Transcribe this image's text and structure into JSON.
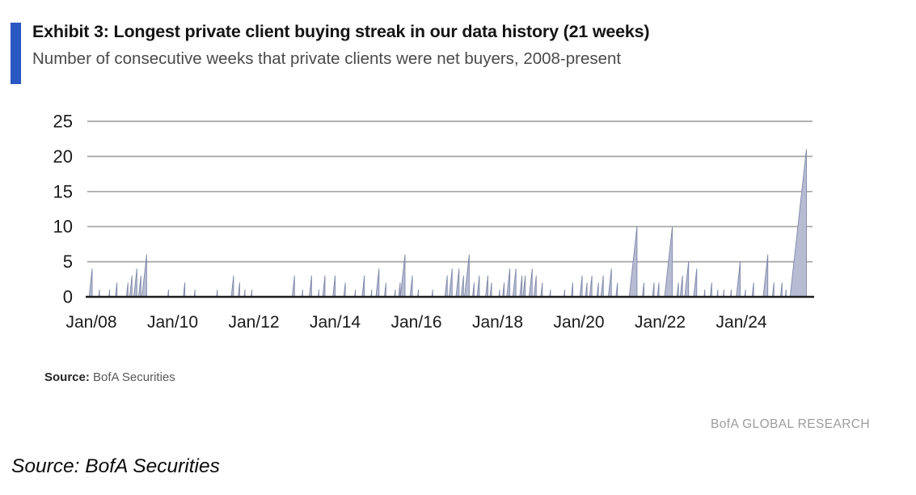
{
  "header": {
    "exhibit_title": "Exhibit 3: Longest private client buying streak in our data history (21 weeks)",
    "subtitle": "Number of consecutive weeks that private clients were net buyers, 2008-present",
    "accent_color": "#2a58c2"
  },
  "footer": {
    "source_label": "Source:",
    "source_text": "BofA Securities",
    "brand": "BofA GLOBAL RESEARCH",
    "caption": "Source: BofA Securities"
  },
  "chart_data": {
    "type": "area",
    "title": "Exhibit 3: Longest private client buying streak in our data history (21 weeks)",
    "subtitle": "Number of consecutive weeks that private clients were net buyers, 2008-present",
    "xlabel": "",
    "ylabel": "",
    "ylim": [
      0,
      25
    ],
    "yticks": [
      0,
      5,
      10,
      15,
      20,
      25
    ],
    "xlim": [
      2007.9,
      2025.75
    ],
    "xticks": [
      {
        "year": 2008,
        "label": "Jan/08"
      },
      {
        "year": 2010,
        "label": "Jan/10"
      },
      {
        "year": 2012,
        "label": "Jan/12"
      },
      {
        "year": 2014,
        "label": "Jan/14"
      },
      {
        "year": 2016,
        "label": "Jan/16"
      },
      {
        "year": 2018,
        "label": "Jan/18"
      },
      {
        "year": 2020,
        "label": "Jan/20"
      },
      {
        "year": 2022,
        "label": "Jan/22"
      },
      {
        "year": 2024,
        "label": "Jan/24"
      }
    ],
    "grid": "horizontal",
    "legend": "none",
    "max_streak_weeks": 21,
    "streaks_format": "[streak_end_year_decimal, streak_length_weeks]",
    "streaks": [
      [
        2008.02,
        4
      ],
      [
        2008.2,
        1
      ],
      [
        2008.45,
        1
      ],
      [
        2008.63,
        2
      ],
      [
        2008.9,
        2
      ],
      [
        2009.0,
        3
      ],
      [
        2009.12,
        4
      ],
      [
        2009.22,
        3
      ],
      [
        2009.36,
        6
      ],
      [
        2009.9,
        1
      ],
      [
        2010.3,
        2
      ],
      [
        2010.55,
        1
      ],
      [
        2011.1,
        1
      ],
      [
        2011.5,
        3
      ],
      [
        2011.65,
        2
      ],
      [
        2011.78,
        1
      ],
      [
        2011.95,
        1
      ],
      [
        2013.0,
        3
      ],
      [
        2013.2,
        1
      ],
      [
        2013.42,
        3
      ],
      [
        2013.6,
        1
      ],
      [
        2013.75,
        3
      ],
      [
        2014.0,
        3
      ],
      [
        2014.25,
        2
      ],
      [
        2014.5,
        1
      ],
      [
        2014.72,
        3
      ],
      [
        2014.9,
        1
      ],
      [
        2015.08,
        4
      ],
      [
        2015.25,
        2
      ],
      [
        2015.48,
        1
      ],
      [
        2015.6,
        2
      ],
      [
        2015.72,
        6
      ],
      [
        2015.9,
        3
      ],
      [
        2016.05,
        1
      ],
      [
        2016.4,
        1
      ],
      [
        2016.76,
        3
      ],
      [
        2016.88,
        4
      ],
      [
        2017.05,
        4
      ],
      [
        2017.16,
        3
      ],
      [
        2017.3,
        6
      ],
      [
        2017.42,
        2
      ],
      [
        2017.55,
        3
      ],
      [
        2017.76,
        3
      ],
      [
        2017.85,
        2
      ],
      [
        2018.05,
        1
      ],
      [
        2018.16,
        2
      ],
      [
        2018.3,
        4
      ],
      [
        2018.45,
        4
      ],
      [
        2018.6,
        3
      ],
      [
        2018.68,
        3
      ],
      [
        2018.85,
        4
      ],
      [
        2018.95,
        3
      ],
      [
        2019.1,
        2
      ],
      [
        2019.3,
        1
      ],
      [
        2019.65,
        1
      ],
      [
        2019.85,
        2
      ],
      [
        2020.08,
        3
      ],
      [
        2020.2,
        2
      ],
      [
        2020.32,
        3
      ],
      [
        2020.48,
        2
      ],
      [
        2020.6,
        3
      ],
      [
        2020.8,
        4
      ],
      [
        2020.95,
        2
      ],
      [
        2021.43,
        10
      ],
      [
        2021.6,
        2
      ],
      [
        2021.85,
        2
      ],
      [
        2021.97,
        2
      ],
      [
        2022.3,
        10
      ],
      [
        2022.45,
        2
      ],
      [
        2022.55,
        3
      ],
      [
        2022.7,
        5
      ],
      [
        2022.9,
        4
      ],
      [
        2023.1,
        1
      ],
      [
        2023.27,
        2
      ],
      [
        2023.42,
        1
      ],
      [
        2023.57,
        1
      ],
      [
        2023.75,
        1
      ],
      [
        2023.97,
        5
      ],
      [
        2024.1,
        1
      ],
      [
        2024.3,
        2
      ],
      [
        2024.65,
        6
      ],
      [
        2024.8,
        2
      ],
      [
        2025.0,
        2
      ],
      [
        2025.1,
        1
      ],
      [
        2025.6,
        21
      ]
    ],
    "colors": {
      "fill": "#b7bcd3",
      "stroke": "#7e87a8",
      "grid": "#a6a6a6",
      "axis": "#1c1c1c",
      "tick_text": "#1a1a1a"
    }
  }
}
